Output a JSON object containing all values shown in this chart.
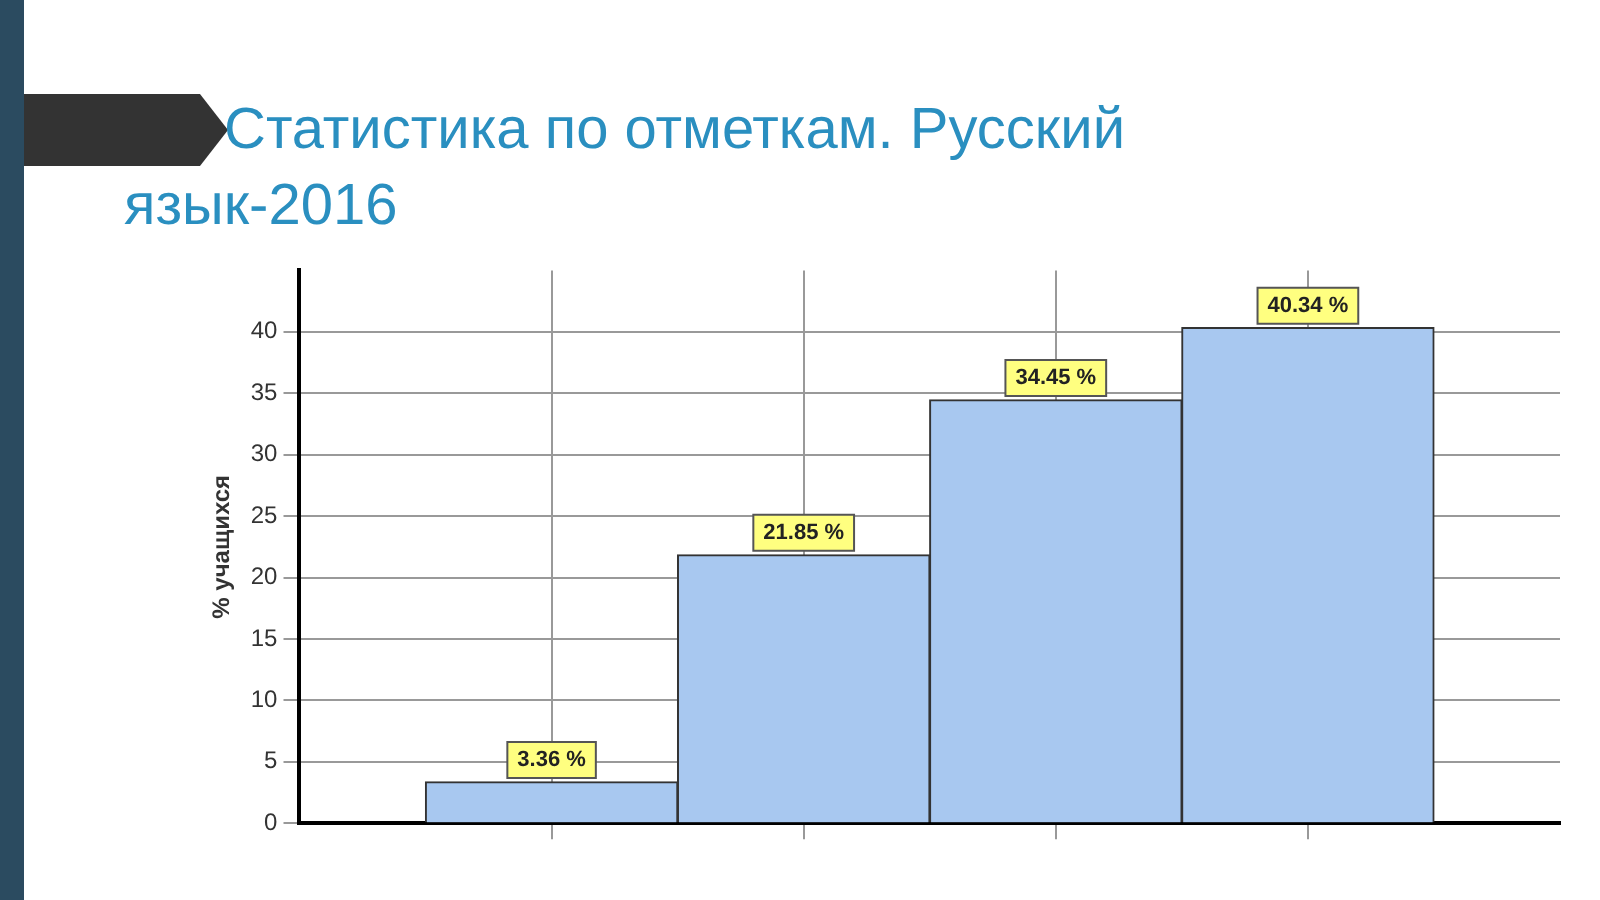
{
  "chart_data": {
    "type": "bar",
    "title": "Статистика по отметкам. Русский язык-2016",
    "ylabel": "% учащихся",
    "categories": [
      null,
      null,
      null,
      null
    ],
    "values": [
      3.36,
      21.85,
      34.45,
      40.34
    ],
    "value_labels": [
      "3.36 %",
      "21.85 %",
      "34.45 %",
      "40.34 %"
    ],
    "color": "#a8c8f0",
    "ylim": [
      0,
      45
    ],
    "yticks": [
      0,
      5,
      10,
      15,
      20,
      25,
      30,
      35,
      40
    ],
    "grid": true
  }
}
